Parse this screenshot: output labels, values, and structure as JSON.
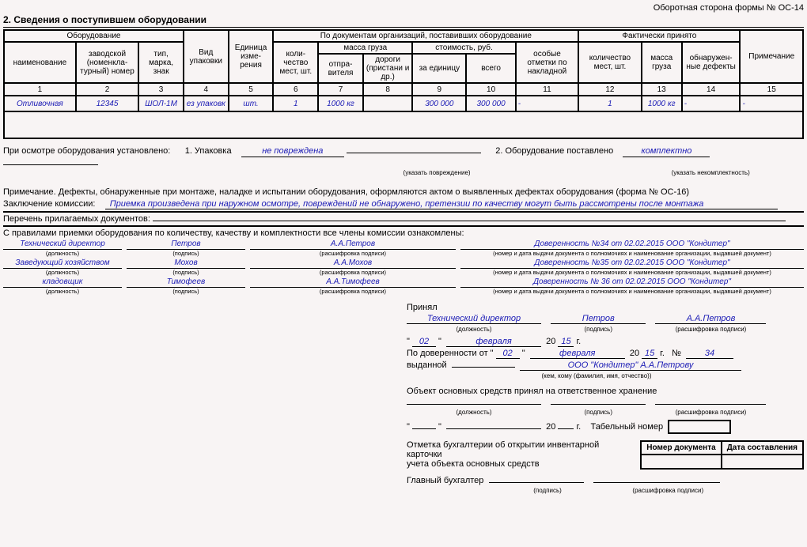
{
  "header": {
    "form_side": "Оборотная сторона формы № ОС-14"
  },
  "section_title": "2. Сведения о поступившем оборудовании",
  "table": {
    "group_headers": {
      "equipment": "Оборудование",
      "pack_type": "Вид упаковки",
      "unit": "Единица изме- рения",
      "by_docs": "По документам организаций, поставивших оборудование",
      "actual": "Фактически принято",
      "note": "Примечание"
    },
    "sub_headers": {
      "name": "наименование",
      "factory_no": "заводской (номенкла- турный) номер",
      "type_mark": "тип, марка, знак",
      "qty": "коли- чество мест, шт.",
      "mass": "масса груза",
      "mass_sender": "отпра- вителя",
      "mass_road": "дороги (пристани и др.)",
      "cost": "стоимость, руб.",
      "cost_unit": "за единицу",
      "cost_total": "всего",
      "special": "особые отметки по накладной",
      "actual_qty": "количество мест, шт.",
      "actual_mass": "масса груза",
      "defects": "обнаружен- ные дефекты"
    },
    "idx": [
      "1",
      "2",
      "3",
      "4",
      "5",
      "6",
      "7",
      "8",
      "9",
      "10",
      "11",
      "12",
      "13",
      "14",
      "15"
    ],
    "row": {
      "name": "Отливочная",
      "factory_no": "12345",
      "type_mark": "ШОЛ-1М",
      "pack": "ез упаковк",
      "unit": "шт.",
      "qty": "1",
      "mass_sender": "1000 кг",
      "mass_road": "",
      "cost_unit": "300 000",
      "cost_total": "300 000",
      "special": "-",
      "actual_qty": "1",
      "actual_mass": "1000 кг",
      "defects": "-",
      "note": "-"
    }
  },
  "inspection": {
    "prefix": "При осмотре оборудования установлено:",
    "l1": "1. Упаковка",
    "l1_val": "не повреждена",
    "l1_hint": "(указать повреждение)",
    "l2": "2. Оборудование поставлено",
    "l2_val": "комплектно",
    "l2_hint": "(указать некомплектность)"
  },
  "note_text": "Примечание. Дефекты, обнаруженные при монтаже, наладке и испытании оборудования, оформляются актом о выявленных дефектах оборудования (форма № ОС-16)",
  "conclusion_label": "Заключение комиссии:",
  "conclusion_val": "Приемка произведена при наружном осмотре, повреждений не обнаружено, претензии по качеству могут быть рассмотрены после монтажа",
  "attachments_label": "Перечень прилагаемых документов:",
  "rules_text": "С правилами приемки оборудования по количеству, качеству и комплектности все члены комиссии ознакомлены:",
  "commission": [
    {
      "pos": "Технический директор",
      "sign": "Петров",
      "deciph": "А.А.Петров",
      "doc": "Доверенность №34 от 02.02.2015 ООО \"Кондитер\""
    },
    {
      "pos": "Заведующий хозяйством",
      "sign": "Мохов",
      "deciph": "А.А.Мохов",
      "doc": "Доверенность №35 от 02.02.2015 ООО \"Кондитер\""
    },
    {
      "pos": "кладовщик",
      "sign": "Тимофеев",
      "deciph": "А.А.Тимофеев",
      "doc": "Доверенность № 36 от 02.02.2015 ООО \"Кондитер\""
    }
  ],
  "hints": {
    "pos": "(должность)",
    "sign": "(подпись)",
    "deciph": "(расшифровка подписи)",
    "doc": "(номер и дата выдачи документа о полномочиях и наименование организации, выдавшей документ)",
    "issued_to": "(кем, кому (фамилия, имя, отчество))"
  },
  "accept": {
    "label": "Принял",
    "pos": "Технический директор",
    "sign": "Петров",
    "deciph": "А.А.Петров",
    "day": "02",
    "month": "февраля",
    "year": "15",
    "proxy_label": "По доверенности от",
    "pday": "02",
    "pmonth": "февраля",
    "pyear": "15",
    "pno_label": "№",
    "pno": "34",
    "issued_label": "выданной",
    "issued_val": "ООО \"Кондитер\" А.А.Петрову",
    "storage_label": "Объект основных средств принял на ответственное хранение",
    "tab_label": "Табельный номер",
    "acct_note1": "Отметка бухгалтерии об открытии инвентарной карточки",
    "acct_note2": "учета объекта основных средств",
    "chief_acc": "Главный бухгалтер"
  },
  "acct_table": {
    "h1": "Номер документа",
    "h2": "Дата составления"
  }
}
